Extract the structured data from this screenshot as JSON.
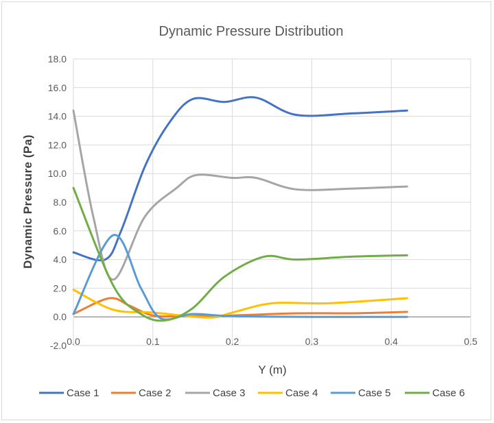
{
  "chart_data": {
    "type": "line",
    "title": "Dynamic Pressure Distribution",
    "xlabel": "Y (m)",
    "ylabel": "Dynamic Pressure (Pa)",
    "xlim": [
      0,
      0.5
    ],
    "ylim": [
      -2,
      18
    ],
    "x_ticks": [
      "0.0",
      "0.1",
      "0.2",
      "0.3",
      "0.4",
      "0.5"
    ],
    "y_ticks": [
      "-2.0",
      "0.0",
      "2.0",
      "4.0",
      "6.0",
      "8.0",
      "10.0",
      "12.0",
      "14.0",
      "16.0",
      "18.0"
    ],
    "grid": true,
    "legend_position": "bottom",
    "series": [
      {
        "name": "Case 1",
        "color": "#4472C4",
        "points": [
          [
            0,
            4.5
          ],
          [
            0.04,
            4.0
          ],
          [
            0.06,
            6.0
          ],
          [
            0.09,
            10.5
          ],
          [
            0.12,
            13.5
          ],
          [
            0.15,
            15.2
          ],
          [
            0.19,
            15.0
          ],
          [
            0.23,
            15.3
          ],
          [
            0.28,
            14.1
          ],
          [
            0.35,
            14.2
          ],
          [
            0.42,
            14.4
          ]
        ]
      },
      {
        "name": "Case 2",
        "color": "#ED7D31",
        "points": [
          [
            0,
            0.2
          ],
          [
            0.045,
            1.3
          ],
          [
            0.07,
            0.8
          ],
          [
            0.1,
            0.1
          ],
          [
            0.14,
            0.05
          ],
          [
            0.2,
            0.1
          ],
          [
            0.28,
            0.25
          ],
          [
            0.35,
            0.25
          ],
          [
            0.42,
            0.35
          ]
        ]
      },
      {
        "name": "Case 3",
        "color": "#A5A5A5",
        "points": [
          [
            0,
            14.4
          ],
          [
            0.025,
            7.0
          ],
          [
            0.05,
            2.6
          ],
          [
            0.09,
            7.0
          ],
          [
            0.13,
            9.0
          ],
          [
            0.155,
            9.9
          ],
          [
            0.2,
            9.7
          ],
          [
            0.23,
            9.7
          ],
          [
            0.28,
            8.9
          ],
          [
            0.35,
            8.95
          ],
          [
            0.42,
            9.1
          ]
        ]
      },
      {
        "name": "Case 4",
        "color": "#FFC000",
        "points": [
          [
            0,
            1.9
          ],
          [
            0.05,
            0.5
          ],
          [
            0.1,
            0.3
          ],
          [
            0.17,
            -0.05
          ],
          [
            0.2,
            0.3
          ],
          [
            0.25,
            0.95
          ],
          [
            0.32,
            0.95
          ],
          [
            0.42,
            1.3
          ]
        ]
      },
      {
        "name": "Case 5",
        "color": "#5B9BD5",
        "points": [
          [
            0,
            0.2
          ],
          [
            0.05,
            5.7
          ],
          [
            0.085,
            2.0
          ],
          [
            0.11,
            -0.1
          ],
          [
            0.15,
            0.2
          ],
          [
            0.2,
            0.05
          ],
          [
            0.3,
            0.0
          ],
          [
            0.42,
            0.0
          ]
        ]
      },
      {
        "name": "Case 6",
        "color": "#70AD47",
        "points": [
          [
            0,
            9.0
          ],
          [
            0.05,
            2.2
          ],
          [
            0.085,
            0.2
          ],
          [
            0.115,
            -0.25
          ],
          [
            0.15,
            0.6
          ],
          [
            0.19,
            2.8
          ],
          [
            0.24,
            4.2
          ],
          [
            0.28,
            4.0
          ],
          [
            0.35,
            4.2
          ],
          [
            0.42,
            4.3
          ]
        ]
      }
    ]
  }
}
